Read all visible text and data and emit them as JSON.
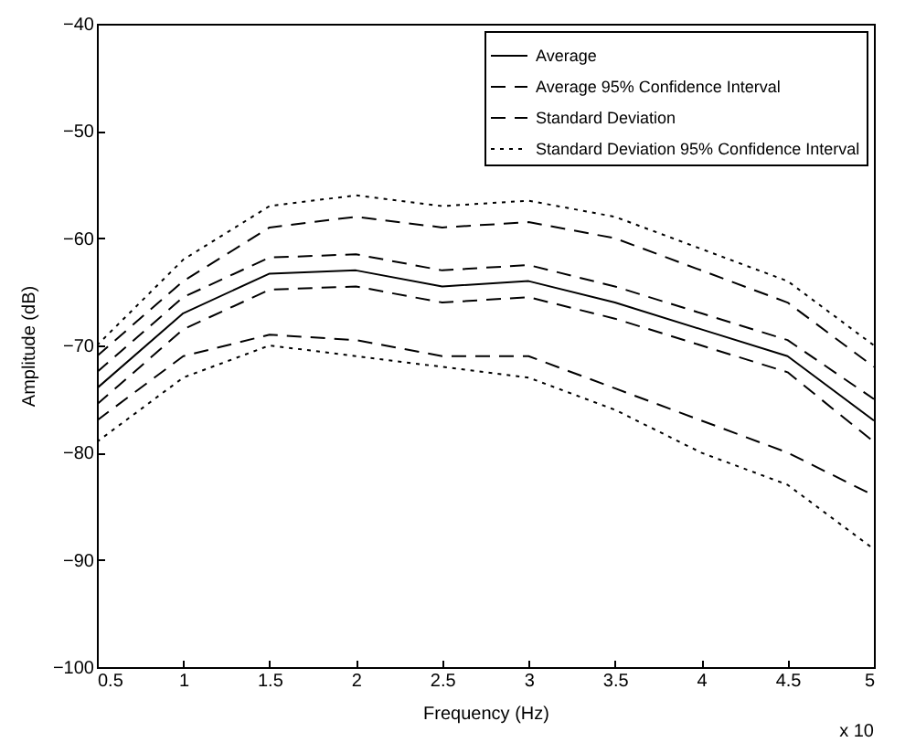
{
  "chart_data": {
    "type": "line",
    "xlabel": "Frequency (Hz)",
    "ylabel": "Amplitude (dB)",
    "x": [
      0.5,
      1,
      1.5,
      2,
      2.5,
      3,
      3.5,
      4,
      4.5,
      5
    ],
    "series": [
      {
        "name": "Average",
        "color": "#000000",
        "line_style": "solid",
        "values": [
          -74,
          -67,
          -63.3,
          -63,
          -64.5,
          -64,
          -66,
          -68.5,
          -71,
          -77
        ]
      },
      {
        "name": "Average 95% Confidence Interval",
        "color": "#000000",
        "line_style": "dashed",
        "values": [
          -72.5,
          -65.5,
          -61.8,
          -61.5,
          -63,
          -62.5,
          -64.5,
          -67,
          -69.5,
          -75
        ]
      },
      {
        "color": "#000000",
        "line_style": "dashed",
        "values": [
          -75.5,
          -68.5,
          -64.8,
          -64.5,
          -66,
          -65.5,
          -67.5,
          -70,
          -72.5,
          -79
        ]
      },
      {
        "name": "Standard Deviation",
        "color": "#000000",
        "line_style": "dashed",
        "values": [
          -71,
          -64,
          -59,
          -58,
          -59,
          -58.5,
          -60,
          -63,
          -66,
          -72
        ]
      },
      {
        "color": "#000000",
        "line_style": "dashed",
        "values": [
          -77,
          -71,
          -69,
          -69.5,
          -71,
          -71,
          -74,
          -77,
          -80,
          -84
        ]
      },
      {
        "name": "Standard Deviation 95% Confidence Interval",
        "color": "#000000",
        "line_style": "dotted",
        "values": [
          -70,
          -62,
          -57,
          -56,
          -57,
          -56.5,
          -58,
          -61,
          -64,
          -70
        ]
      },
      {
        "color": "#000000",
        "line_style": "dotted",
        "values": [
          -79,
          -73,
          -70,
          -71,
          -72,
          -73,
          -76,
          -80,
          -83,
          -89
        ]
      }
    ],
    "xlim": [
      0.5,
      5
    ],
    "xticks": [
      0.5,
      1,
      1.5,
      2,
      2.5,
      3,
      3.5,
      4,
      4.5,
      5
    ],
    "ylim": [
      -100,
      -40
    ],
    "yticks": [
      -100,
      -90,
      -80,
      -70,
      -60,
      -50,
      -40
    ],
    "grid": false,
    "legend": "top right",
    "annotations": [
      "x 10"
    ]
  }
}
